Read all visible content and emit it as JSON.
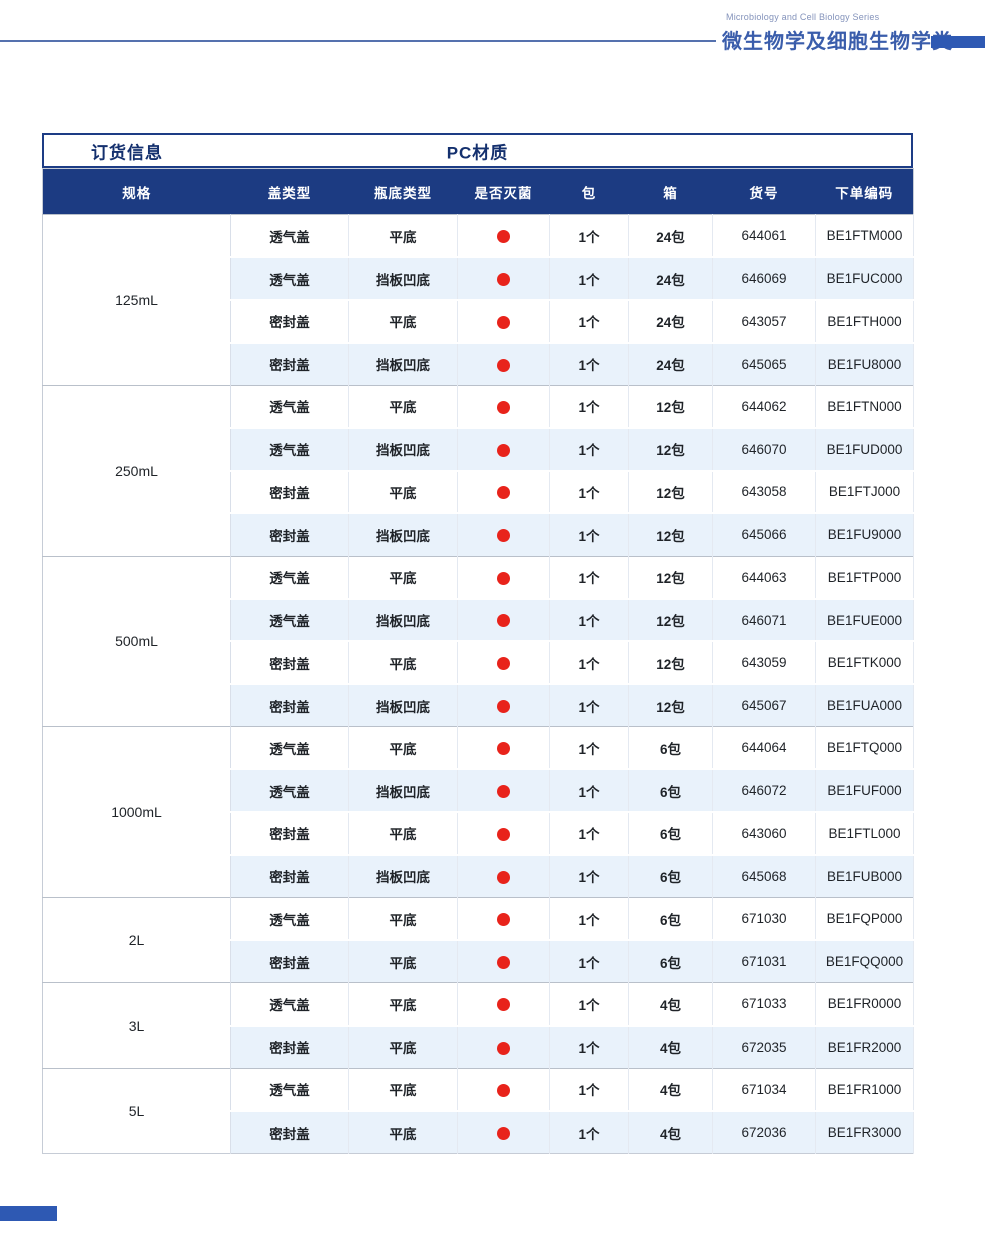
{
  "page_header": {
    "series_en": "Microbiology and Cell Biology Series",
    "title_zh": "微生物学及细胞生物学类"
  },
  "table": {
    "title_left": "订货信息",
    "title_center": "PC材质",
    "columns": [
      "规格",
      "盖类型",
      "瓶底类型",
      "是否灭菌",
      "包",
      "箱",
      "货号",
      "下单编码"
    ],
    "sterile_icon": "red-dot",
    "groups": [
      {
        "spec": "125mL",
        "rows": [
          {
            "cap": "透气盖",
            "bottom": "平底",
            "sterile": true,
            "pack": "1个",
            "carton": "24包",
            "item_no": "644061",
            "order_code": "BE1FTM000"
          },
          {
            "cap": "透气盖",
            "bottom": "挡板凹底",
            "sterile": true,
            "pack": "1个",
            "carton": "24包",
            "item_no": "646069",
            "order_code": "BE1FUC000"
          },
          {
            "cap": "密封盖",
            "bottom": "平底",
            "sterile": true,
            "pack": "1个",
            "carton": "24包",
            "item_no": "643057",
            "order_code": "BE1FTH000"
          },
          {
            "cap": "密封盖",
            "bottom": "挡板凹底",
            "sterile": true,
            "pack": "1个",
            "carton": "24包",
            "item_no": "645065",
            "order_code": "BE1FU8000"
          }
        ]
      },
      {
        "spec": "250mL",
        "rows": [
          {
            "cap": "透气盖",
            "bottom": "平底",
            "sterile": true,
            "pack": "1个",
            "carton": "12包",
            "item_no": "644062",
            "order_code": "BE1FTN000"
          },
          {
            "cap": "透气盖",
            "bottom": "挡板凹底",
            "sterile": true,
            "pack": "1个",
            "carton": "12包",
            "item_no": "646070",
            "order_code": "BE1FUD000"
          },
          {
            "cap": "密封盖",
            "bottom": "平底",
            "sterile": true,
            "pack": "1个",
            "carton": "12包",
            "item_no": "643058",
            "order_code": "BE1FTJ000"
          },
          {
            "cap": "密封盖",
            "bottom": "挡板凹底",
            "sterile": true,
            "pack": "1个",
            "carton": "12包",
            "item_no": "645066",
            "order_code": "BE1FU9000"
          }
        ]
      },
      {
        "spec": "500mL",
        "rows": [
          {
            "cap": "透气盖",
            "bottom": "平底",
            "sterile": true,
            "pack": "1个",
            "carton": "12包",
            "item_no": "644063",
            "order_code": "BE1FTP000"
          },
          {
            "cap": "透气盖",
            "bottom": "挡板凹底",
            "sterile": true,
            "pack": "1个",
            "carton": "12包",
            "item_no": "646071",
            "order_code": "BE1FUE000"
          },
          {
            "cap": "密封盖",
            "bottom": "平底",
            "sterile": true,
            "pack": "1个",
            "carton": "12包",
            "item_no": "643059",
            "order_code": "BE1FTK000"
          },
          {
            "cap": "密封盖",
            "bottom": "挡板凹底",
            "sterile": true,
            "pack": "1个",
            "carton": "12包",
            "item_no": "645067",
            "order_code": "BE1FUA000"
          }
        ]
      },
      {
        "spec": "1000mL",
        "rows": [
          {
            "cap": "透气盖",
            "bottom": "平底",
            "sterile": true,
            "pack": "1个",
            "carton": "6包",
            "item_no": "644064",
            "order_code": "BE1FTQ000"
          },
          {
            "cap": "透气盖",
            "bottom": "挡板凹底",
            "sterile": true,
            "pack": "1个",
            "carton": "6包",
            "item_no": "646072",
            "order_code": "BE1FUF000"
          },
          {
            "cap": "密封盖",
            "bottom": "平底",
            "sterile": true,
            "pack": "1个",
            "carton": "6包",
            "item_no": "643060",
            "order_code": "BE1FTL000"
          },
          {
            "cap": "密封盖",
            "bottom": "挡板凹底",
            "sterile": true,
            "pack": "1个",
            "carton": "6包",
            "item_no": "645068",
            "order_code": "BE1FUB000"
          }
        ]
      },
      {
        "spec": "2L",
        "rows": [
          {
            "cap": "透气盖",
            "bottom": "平底",
            "sterile": true,
            "pack": "1个",
            "carton": "6包",
            "item_no": "671030",
            "order_code": "BE1FQP000"
          },
          {
            "cap": "密封盖",
            "bottom": "平底",
            "sterile": true,
            "pack": "1个",
            "carton": "6包",
            "item_no": "671031",
            "order_code": "BE1FQQ000"
          }
        ]
      },
      {
        "spec": "3L",
        "rows": [
          {
            "cap": "透气盖",
            "bottom": "平底",
            "sterile": true,
            "pack": "1个",
            "carton": "4包",
            "item_no": "671033",
            "order_code": "BE1FR0000"
          },
          {
            "cap": "密封盖",
            "bottom": "平底",
            "sterile": true,
            "pack": "1个",
            "carton": "4包",
            "item_no": "672035",
            "order_code": "BE1FR2000"
          }
        ]
      },
      {
        "spec": "5L",
        "rows": [
          {
            "cap": "透气盖",
            "bottom": "平底",
            "sterile": true,
            "pack": "1个",
            "carton": "4包",
            "item_no": "671034",
            "order_code": "BE1FR1000"
          },
          {
            "cap": "密封盖",
            "bottom": "平底",
            "sterile": true,
            "pack": "1个",
            "carton": "4包",
            "item_no": "672036",
            "order_code": "BE1FR3000"
          }
        ]
      }
    ]
  },
  "colors": {
    "header_blue": "#1c3b82",
    "title_text_blue": "#14306e",
    "page_title_blue": "#3a5dab",
    "accent_bar_blue": "#2e59b3",
    "row_alt_blue": "#e9f2fb",
    "sterile_red": "#e8231b"
  }
}
